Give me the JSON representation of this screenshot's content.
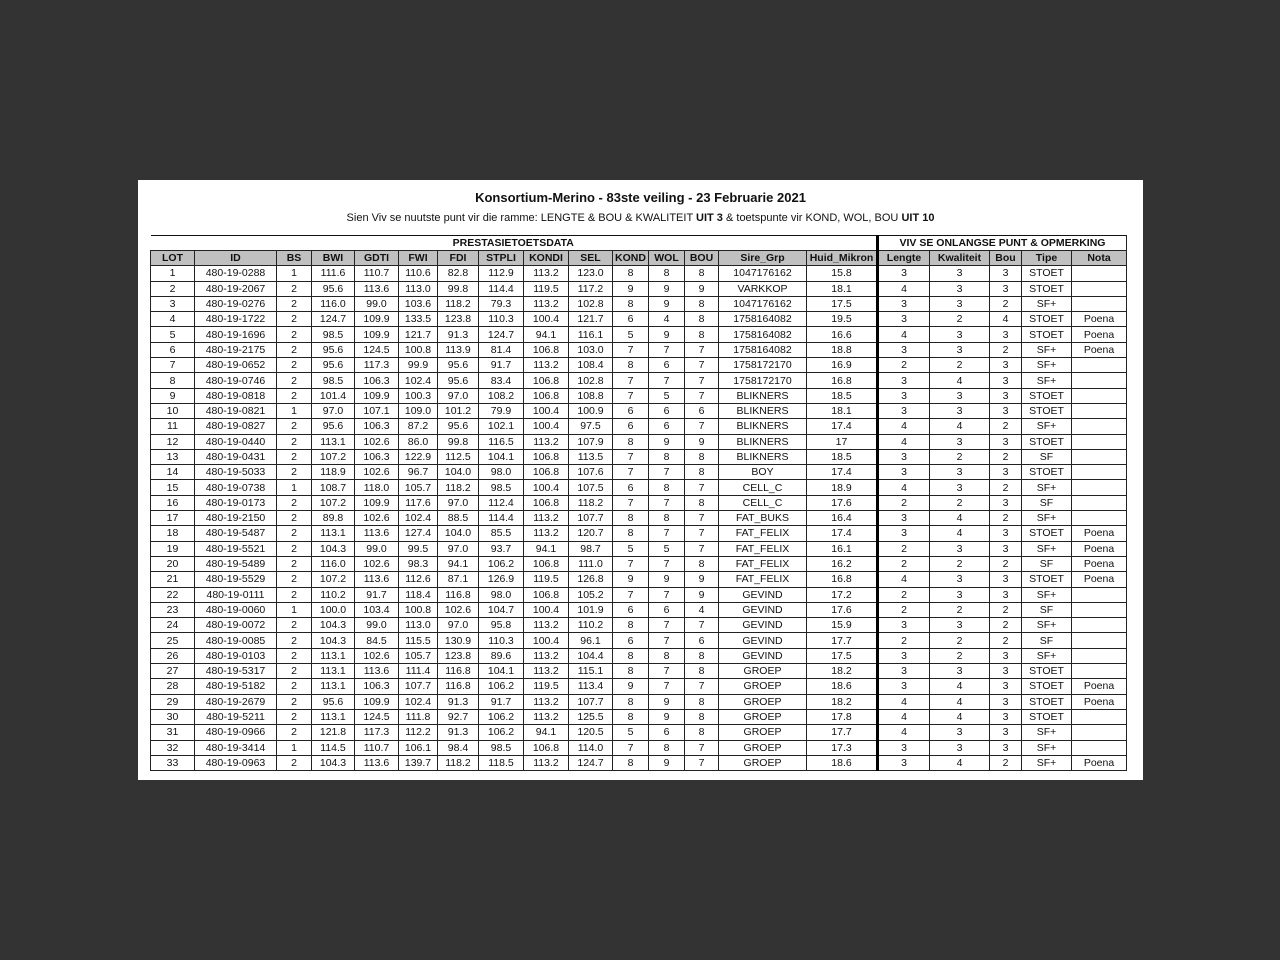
{
  "title": "Konsortium-Merino - 83ste veiling - 23 Februarie 2021",
  "subtitle": {
    "part1": "Sien Viv se nuutste punt vir die ramme: LENGTE & BOU & KWALITEIT ",
    "bold1": "UIT 3",
    "part2": " & toetspunte vir KOND, WOL, BOU ",
    "bold2": "UIT 10"
  },
  "groups": {
    "left": "PRESTASIETOETSDATA",
    "right": "VIV SE ONLANGSE PUNT & OPMERKING"
  },
  "columns": [
    "LOT",
    "ID",
    "BS",
    "BWI",
    "GDTI",
    "FWI",
    "FDI",
    "STPLI",
    "KONDI",
    "SEL",
    "KOND",
    "WOL",
    "BOU",
    "Sire_Grp",
    "Huid_Mikron",
    "Lengte",
    "Kwaliteit",
    "Bou",
    "Tipe",
    "Nota"
  ],
  "rows": [
    [
      "1",
      "480-19-0288",
      "1",
      "111.6",
      "110.7",
      "110.6",
      "82.8",
      "112.9",
      "113.2",
      "123.0",
      "8",
      "8",
      "8",
      "1047176162",
      "15.8",
      "3",
      "3",
      "3",
      "STOET",
      ""
    ],
    [
      "2",
      "480-19-2067",
      "2",
      "95.6",
      "113.6",
      "113.0",
      "99.8",
      "114.4",
      "119.5",
      "117.2",
      "9",
      "9",
      "9",
      "VARKKOP",
      "18.1",
      "4",
      "3",
      "3",
      "STOET",
      ""
    ],
    [
      "3",
      "480-19-0276",
      "2",
      "116.0",
      "99.0",
      "103.6",
      "118.2",
      "79.3",
      "113.2",
      "102.8",
      "8",
      "9",
      "8",
      "1047176162",
      "17.5",
      "3",
      "3",
      "2",
      "SF+",
      ""
    ],
    [
      "4",
      "480-19-1722",
      "2",
      "124.7",
      "109.9",
      "133.5",
      "123.8",
      "110.3",
      "100.4",
      "121.7",
      "6",
      "4",
      "8",
      "1758164082",
      "19.5",
      "3",
      "2",
      "4",
      "STOET",
      "Poena"
    ],
    [
      "5",
      "480-19-1696",
      "2",
      "98.5",
      "109.9",
      "121.7",
      "91.3",
      "124.7",
      "94.1",
      "116.1",
      "5",
      "9",
      "8",
      "1758164082",
      "16.6",
      "4",
      "3",
      "3",
      "STOET",
      "Poena"
    ],
    [
      "6",
      "480-19-2175",
      "2",
      "95.6",
      "124.5",
      "100.8",
      "113.9",
      "81.4",
      "106.8",
      "103.0",
      "7",
      "7",
      "7",
      "1758164082",
      "18.8",
      "3",
      "3",
      "2",
      "SF+",
      "Poena"
    ],
    [
      "7",
      "480-19-0652",
      "2",
      "95.6",
      "117.3",
      "99.9",
      "95.6",
      "91.7",
      "113.2",
      "108.4",
      "8",
      "6",
      "7",
      "1758172170",
      "16.9",
      "2",
      "2",
      "3",
      "SF+",
      ""
    ],
    [
      "8",
      "480-19-0746",
      "2",
      "98.5",
      "106.3",
      "102.4",
      "95.6",
      "83.4",
      "106.8",
      "102.8",
      "7",
      "7",
      "7",
      "1758172170",
      "16.8",
      "3",
      "4",
      "3",
      "SF+",
      ""
    ],
    [
      "9",
      "480-19-0818",
      "2",
      "101.4",
      "109.9",
      "100.3",
      "97.0",
      "108.2",
      "106.8",
      "108.8",
      "7",
      "5",
      "7",
      "BLIKNERS",
      "18.5",
      "3",
      "3",
      "3",
      "STOET",
      ""
    ],
    [
      "10",
      "480-19-0821",
      "1",
      "97.0",
      "107.1",
      "109.0",
      "101.2",
      "79.9",
      "100.4",
      "100.9",
      "6",
      "6",
      "6",
      "BLIKNERS",
      "18.1",
      "3",
      "3",
      "3",
      "STOET",
      ""
    ],
    [
      "11",
      "480-19-0827",
      "2",
      "95.6",
      "106.3",
      "87.2",
      "95.6",
      "102.1",
      "100.4",
      "97.5",
      "6",
      "6",
      "7",
      "BLIKNERS",
      "17.4",
      "4",
      "4",
      "2",
      "SF+",
      ""
    ],
    [
      "12",
      "480-19-0440",
      "2",
      "113.1",
      "102.6",
      "86.0",
      "99.8",
      "116.5",
      "113.2",
      "107.9",
      "8",
      "9",
      "9",
      "BLIKNERS",
      "17",
      "4",
      "3",
      "3",
      "STOET",
      ""
    ],
    [
      "13",
      "480-19-0431",
      "2",
      "107.2",
      "106.3",
      "122.9",
      "112.5",
      "104.1",
      "106.8",
      "113.5",
      "7",
      "8",
      "8",
      "BLIKNERS",
      "18.5",
      "3",
      "2",
      "2",
      "SF",
      ""
    ],
    [
      "14",
      "480-19-5033",
      "2",
      "118.9",
      "102.6",
      "96.7",
      "104.0",
      "98.0",
      "106.8",
      "107.6",
      "7",
      "7",
      "8",
      "BOY",
      "17.4",
      "3",
      "3",
      "3",
      "STOET",
      ""
    ],
    [
      "15",
      "480-19-0738",
      "1",
      "108.7",
      "118.0",
      "105.7",
      "118.2",
      "98.5",
      "100.4",
      "107.5",
      "6",
      "8",
      "7",
      "CELL_C",
      "18.9",
      "4",
      "3",
      "2",
      "SF+",
      ""
    ],
    [
      "16",
      "480-19-0173",
      "2",
      "107.2",
      "109.9",
      "117.6",
      "97.0",
      "112.4",
      "106.8",
      "118.2",
      "7",
      "7",
      "8",
      "CELL_C",
      "17.6",
      "2",
      "2",
      "3",
      "SF",
      ""
    ],
    [
      "17",
      "480-19-2150",
      "2",
      "89.8",
      "102.6",
      "102.4",
      "88.5",
      "114.4",
      "113.2",
      "107.7",
      "8",
      "8",
      "7",
      "FAT_BUKS",
      "16.4",
      "3",
      "4",
      "2",
      "SF+",
      ""
    ],
    [
      "18",
      "480-19-5487",
      "2",
      "113.1",
      "113.6",
      "127.4",
      "104.0",
      "85.5",
      "113.2",
      "120.7",
      "8",
      "7",
      "7",
      "FAT_FELIX",
      "17.4",
      "3",
      "4",
      "3",
      "STOET",
      "Poena"
    ],
    [
      "19",
      "480-19-5521",
      "2",
      "104.3",
      "99.0",
      "99.5",
      "97.0",
      "93.7",
      "94.1",
      "98.7",
      "5",
      "5",
      "7",
      "FAT_FELIX",
      "16.1",
      "2",
      "3",
      "3",
      "SF+",
      "Poena"
    ],
    [
      "20",
      "480-19-5489",
      "2",
      "116.0",
      "102.6",
      "98.3",
      "94.1",
      "106.2",
      "106.8",
      "111.0",
      "7",
      "7",
      "8",
      "FAT_FELIX",
      "16.2",
      "2",
      "2",
      "2",
      "SF",
      "Poena"
    ],
    [
      "21",
      "480-19-5529",
      "2",
      "107.2",
      "113.6",
      "112.6",
      "87.1",
      "126.9",
      "119.5",
      "126.8",
      "9",
      "9",
      "9",
      "FAT_FELIX",
      "16.8",
      "4",
      "3",
      "3",
      "STOET",
      "Poena"
    ],
    [
      "22",
      "480-19-0111",
      "2",
      "110.2",
      "91.7",
      "118.4",
      "116.8",
      "98.0",
      "106.8",
      "105.2",
      "7",
      "7",
      "9",
      "GEVIND",
      "17.2",
      "2",
      "3",
      "3",
      "SF+",
      ""
    ],
    [
      "23",
      "480-19-0060",
      "1",
      "100.0",
      "103.4",
      "100.8",
      "102.6",
      "104.7",
      "100.4",
      "101.9",
      "6",
      "6",
      "4",
      "GEVIND",
      "17.6",
      "2",
      "2",
      "2",
      "SF",
      ""
    ],
    [
      "24",
      "480-19-0072",
      "2",
      "104.3",
      "99.0",
      "113.0",
      "97.0",
      "95.8",
      "113.2",
      "110.2",
      "8",
      "7",
      "7",
      "GEVIND",
      "15.9",
      "3",
      "3",
      "2",
      "SF+",
      ""
    ],
    [
      "25",
      "480-19-0085",
      "2",
      "104.3",
      "84.5",
      "115.5",
      "130.9",
      "110.3",
      "100.4",
      "96.1",
      "6",
      "7",
      "6",
      "GEVIND",
      "17.7",
      "2",
      "2",
      "2",
      "SF",
      ""
    ],
    [
      "26",
      "480-19-0103",
      "2",
      "113.1",
      "102.6",
      "105.7",
      "123.8",
      "89.6",
      "113.2",
      "104.4",
      "8",
      "8",
      "8",
      "GEVIND",
      "17.5",
      "3",
      "2",
      "3",
      "SF+",
      ""
    ],
    [
      "27",
      "480-19-5317",
      "2",
      "113.1",
      "113.6",
      "111.4",
      "116.8",
      "104.1",
      "113.2",
      "115.1",
      "8",
      "7",
      "8",
      "GROEP",
      "18.2",
      "3",
      "3",
      "3",
      "STOET",
      ""
    ],
    [
      "28",
      "480-19-5182",
      "2",
      "113.1",
      "106.3",
      "107.7",
      "116.8",
      "106.2",
      "119.5",
      "113.4",
      "9",
      "7",
      "7",
      "GROEP",
      "18.6",
      "3",
      "4",
      "3",
      "STOET",
      "Poena"
    ],
    [
      "29",
      "480-19-2679",
      "2",
      "95.6",
      "109.9",
      "102.4",
      "91.3",
      "91.7",
      "113.2",
      "107.7",
      "8",
      "9",
      "8",
      "GROEP",
      "18.2",
      "4",
      "4",
      "3",
      "STOET",
      "Poena"
    ],
    [
      "30",
      "480-19-5211",
      "2",
      "113.1",
      "124.5",
      "111.8",
      "92.7",
      "106.2",
      "113.2",
      "125.5",
      "8",
      "9",
      "8",
      "GROEP",
      "17.8",
      "4",
      "4",
      "3",
      "STOET",
      ""
    ],
    [
      "31",
      "480-19-0966",
      "2",
      "121.8",
      "117.3",
      "112.2",
      "91.3",
      "106.2",
      "94.1",
      "120.5",
      "5",
      "6",
      "8",
      "GROEP",
      "17.7",
      "4",
      "3",
      "3",
      "SF+",
      ""
    ],
    [
      "32",
      "480-19-3414",
      "1",
      "114.5",
      "110.7",
      "106.1",
      "98.4",
      "98.5",
      "106.8",
      "114.0",
      "7",
      "8",
      "7",
      "GROEP",
      "17.3",
      "3",
      "3",
      "3",
      "SF+",
      ""
    ],
    [
      "33",
      "480-19-0963",
      "2",
      "104.3",
      "113.6",
      "139.7",
      "118.2",
      "118.5",
      "113.2",
      "124.7",
      "8",
      "9",
      "7",
      "GROEP",
      "18.6",
      "3",
      "4",
      "2",
      "SF+",
      "Poena"
    ]
  ]
}
